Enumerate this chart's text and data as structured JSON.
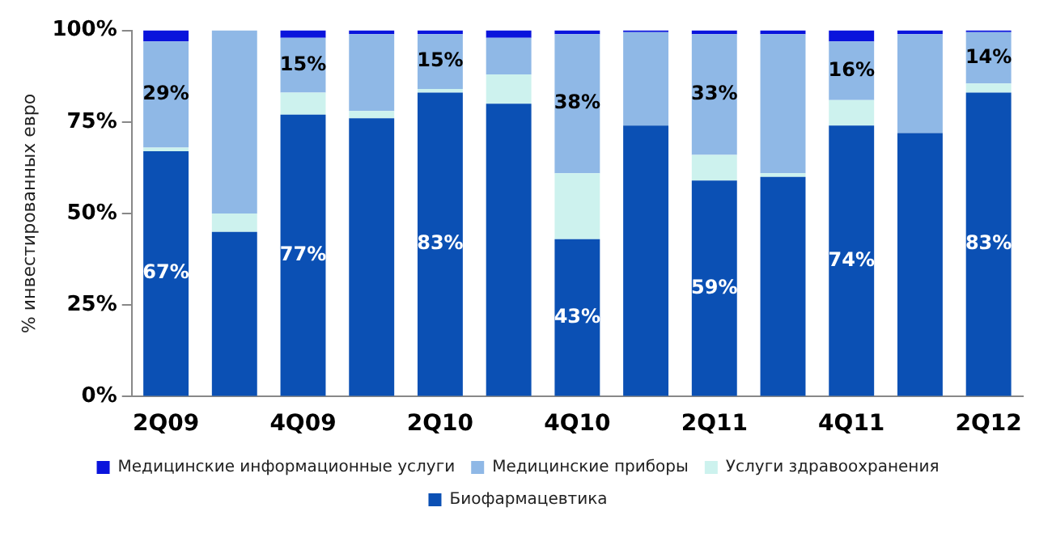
{
  "chart_data": {
    "type": "bar",
    "stacked": true,
    "ylabel": "% инвестированных евро",
    "categories": [
      "2Q09",
      null,
      "4Q09",
      null,
      "2Q10",
      null,
      "4Q10",
      null,
      "2Q11",
      null,
      "4Q11",
      null,
      "2Q12"
    ],
    "ylim": [
      0,
      100
    ],
    "yticks": [
      {
        "value": 0,
        "label": "0%"
      },
      {
        "value": 25,
        "label": "25%"
      },
      {
        "value": 50,
        "label": "50%"
      },
      {
        "value": 75,
        "label": "75%"
      },
      {
        "value": 100,
        "label": "100%"
      }
    ],
    "grid": false,
    "legend": "bottom",
    "series": [
      {
        "name": "Биофармацевтика",
        "color": "#0b50b4",
        "values": [
          67,
          45,
          77,
          76,
          83,
          80,
          43,
          74,
          59,
          60,
          74,
          72,
          83
        ],
        "value_labels": [
          "67%",
          null,
          "77%",
          null,
          "83%",
          null,
          "43%",
          null,
          "59%",
          null,
          "74%",
          null,
          "83%"
        ]
      },
      {
        "name": "Услуги здравоохранения",
        "color": "#cdf2ee",
        "values": [
          1,
          5,
          6,
          2,
          1,
          8,
          18,
          0,
          7,
          1,
          7,
          0,
          2.5
        ]
      },
      {
        "name": "Медицинские приборы",
        "color": "#8fb8e6",
        "values": [
          29,
          50,
          15,
          21,
          15,
          10,
          38,
          25.5,
          33,
          38,
          16,
          27,
          14
        ],
        "value_labels": [
          "29%",
          null,
          "15%",
          null,
          "15%",
          null,
          "38%",
          null,
          "33%",
          null,
          "16%",
          null,
          "14%"
        ]
      },
      {
        "name": "Медицинские информационные услуги",
        "color": "#0a14dc",
        "values": [
          3,
          0,
          2,
          1,
          1,
          2,
          1,
          0.5,
          1,
          1,
          3,
          1,
          0.5
        ]
      }
    ]
  }
}
